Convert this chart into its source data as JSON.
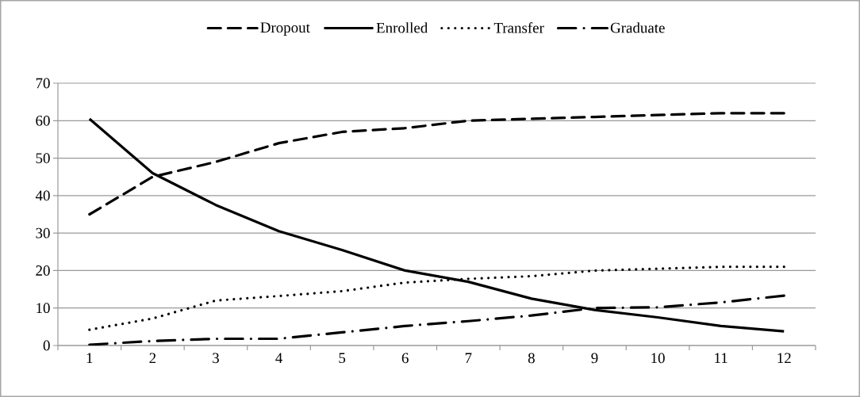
{
  "chart_data": {
    "type": "line",
    "categories": [
      "1",
      "2",
      "3",
      "4",
      "5",
      "6",
      "7",
      "8",
      "9",
      "10",
      "11",
      "12"
    ],
    "series": [
      {
        "name": "Dropout",
        "color": "#000000",
        "line_style": "dashed",
        "values": [
          35,
          45,
          49,
          54,
          57,
          58,
          60,
          60.5,
          61,
          61.5,
          62,
          62
        ]
      },
      {
        "name": "Enrolled",
        "color": "#000000",
        "line_style": "solid",
        "values": [
          60.5,
          46,
          37.5,
          30.5,
          25.5,
          20,
          17,
          12.5,
          9.5,
          7.5,
          5.2,
          3.8
        ]
      },
      {
        "name": "Transfer",
        "color": "#000000",
        "line_style": "dotted",
        "values": [
          4.2,
          7.2,
          12,
          13.2,
          14.5,
          16.8,
          17.8,
          18.5,
          20,
          20.5,
          21,
          21
        ]
      },
      {
        "name": "Graduate",
        "color": "#000000",
        "line_style": "dashdot",
        "values": [
          0.2,
          1.2,
          1.8,
          1.8,
          3.5,
          5.2,
          6.5,
          8,
          10,
          10.2,
          11.5,
          13.3
        ]
      }
    ],
    "ylim": [
      0,
      70
    ],
    "yticks": [
      0,
      10,
      20,
      30,
      40,
      50,
      60,
      70
    ],
    "grid": "y",
    "legend": "top"
  }
}
